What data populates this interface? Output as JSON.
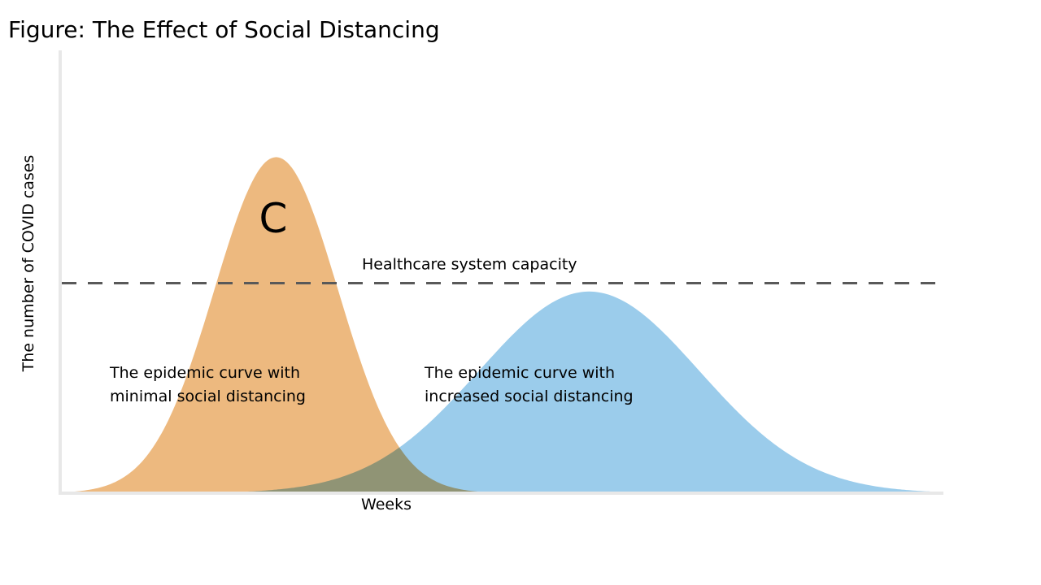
{
  "title": "Figure: The Effect of Social Distancing",
  "chart_data": {
    "type": "area",
    "title": "Figure: The Effect of Social Distancing",
    "xlabel": "Weeks",
    "ylabel": "The number of COVID cases",
    "xlim": [
      0,
      100
    ],
    "ylim": [
      0,
      100
    ],
    "grid": false,
    "series": [
      {
        "name": "The epidemic curve with minimal social distancing",
        "label_lines": [
          "The epidemic curve with",
          "minimal social distancing"
        ],
        "color": "#EDB97F",
        "peak_x": 24.5,
        "peak_y": 80,
        "spread": 7
      },
      {
        "name": "The epidemic curve with increased social distancing",
        "label_lines": [
          "The epidemic curve with",
          "increased social distancing"
        ],
        "color": "#96C9EA",
        "peak_x": 60,
        "peak_y": 48,
        "spread": 12.5
      }
    ],
    "capacity": {
      "label": "Healthcare system capacity",
      "y": 50,
      "color": "#595959"
    },
    "annotation": {
      "text": "C"
    }
  }
}
